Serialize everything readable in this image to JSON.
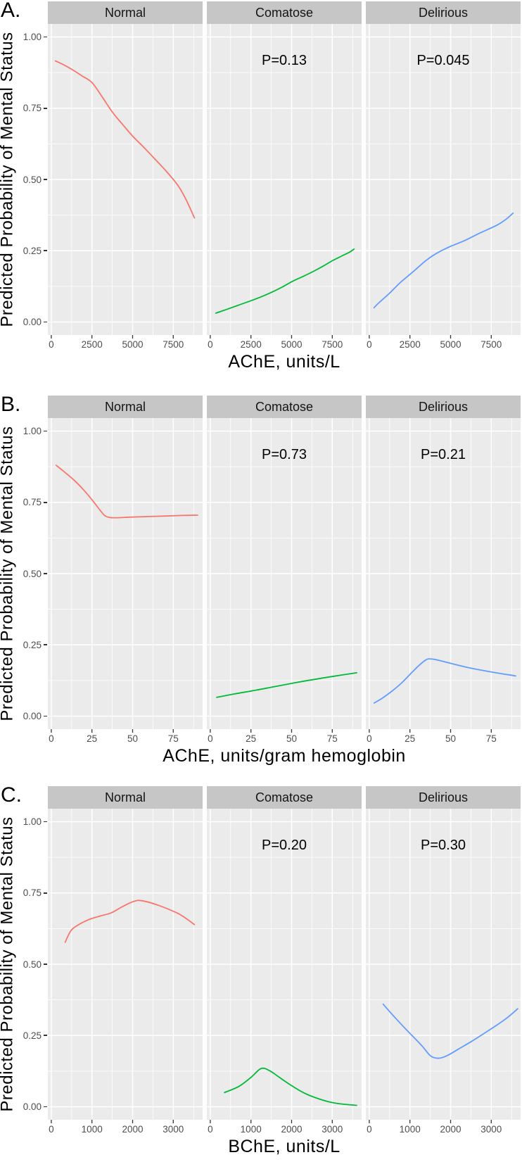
{
  "figure": {
    "ylabel": "Predicted Probability of Mental Status",
    "ytick_values": [
      1.0,
      0.75,
      0.5,
      0.25,
      0.0
    ],
    "ytick_labels": [
      "1.00",
      "0.75",
      "0.50",
      "0.25",
      "0.00"
    ],
    "yminor_values": [
      0.875,
      0.625,
      0.375,
      0.125
    ],
    "colors": {
      "normal_line": "#F8766D",
      "comatose_line": "#00BA38",
      "delirious_line": "#619CFF",
      "panel_bg": "#EBEBEB",
      "strip_bg": "#C6C6C6",
      "grid": "#FFFFFF",
      "tick_text": "#4D4D4D",
      "tick_mark": "#333333",
      "text": "#000000"
    },
    "annotation_y_value": 0.92
  },
  "chart_data": [
    {
      "panel": "A.",
      "type": "line",
      "xlabel": "AChE, units/L",
      "ylabel": "Predicted Probability of Mental Status",
      "xticks": [
        0,
        2500,
        5000,
        7500
      ],
      "xtick_labels": [
        "0",
        "2500",
        "5000",
        "7500"
      ],
      "yticks": [
        0.0,
        0.25,
        0.5,
        0.75,
        1.0
      ],
      "ylim": [
        0,
        1
      ],
      "grid": true,
      "facets": [
        {
          "label": "Normal",
          "color": "#F8766D",
          "p_value": "",
          "points": [
            [
              250,
              0.916
            ],
            [
              800,
              0.901
            ],
            [
              1300,
              0.885
            ],
            [
              1900,
              0.863
            ],
            [
              2500,
              0.84
            ],
            [
              3100,
              0.792
            ],
            [
              3800,
              0.733
            ],
            [
              4400,
              0.692
            ],
            [
              5000,
              0.652
            ],
            [
              5700,
              0.612
            ],
            [
              6400,
              0.57
            ],
            [
              7100,
              0.527
            ],
            [
              7800,
              0.478
            ],
            [
              8300,
              0.428
            ],
            [
              8800,
              0.365
            ]
          ]
        },
        {
          "label": "Comatose",
          "color": "#00BA38",
          "p_value": "P=0.13",
          "points": [
            [
              340,
              0.031
            ],
            [
              1000,
              0.044
            ],
            [
              1780,
              0.06
            ],
            [
              2570,
              0.076
            ],
            [
              3250,
              0.091
            ],
            [
              3940,
              0.109
            ],
            [
              4500,
              0.125
            ],
            [
              5100,
              0.144
            ],
            [
              5750,
              0.161
            ],
            [
              6390,
              0.179
            ],
            [
              7000,
              0.198
            ],
            [
              7540,
              0.216
            ],
            [
              8100,
              0.232
            ],
            [
              8560,
              0.245
            ],
            [
              8840,
              0.256
            ]
          ]
        },
        {
          "label": "Delirious",
          "color": "#619CFF",
          "p_value": "P=0.045",
          "points": [
            [
              290,
              0.05
            ],
            [
              600,
              0.068
            ],
            [
              1230,
              0.1
            ],
            [
              1900,
              0.138
            ],
            [
              2670,
              0.175
            ],
            [
              3470,
              0.215
            ],
            [
              4110,
              0.24
            ],
            [
              4900,
              0.263
            ],
            [
              5840,
              0.285
            ],
            [
              6800,
              0.312
            ],
            [
              7860,
              0.34
            ],
            [
              8400,
              0.36
            ],
            [
              8840,
              0.382
            ]
          ]
        }
      ]
    },
    {
      "panel": "B.",
      "type": "line",
      "xlabel": "AChE, units/gram  hemoglobin",
      "ylabel": "Predicted Probability of Mental Status",
      "xticks": [
        0,
        25,
        50,
        75
      ],
      "xtick_labels": [
        "0",
        "25",
        "50",
        "75"
      ],
      "yticks": [
        0.0,
        0.25,
        0.5,
        0.75,
        1.0
      ],
      "ylim": [
        0,
        1
      ],
      "grid": true,
      "facets": [
        {
          "label": "Normal",
          "color": "#F8766D",
          "p_value": "",
          "points": [
            [
              3,
              0.88
            ],
            [
              8,
              0.857
            ],
            [
              14,
              0.828
            ],
            [
              20,
              0.793
            ],
            [
              26,
              0.752
            ],
            [
              30,
              0.722
            ],
            [
              33,
              0.703
            ],
            [
              36,
              0.697
            ],
            [
              40,
              0.696
            ],
            [
              48,
              0.698
            ],
            [
              58,
              0.7
            ],
            [
              70,
              0.702
            ],
            [
              80,
              0.704
            ],
            [
              90,
              0.705
            ]
          ]
        },
        {
          "label": "Comatose",
          "color": "#00BA38",
          "p_value": "P=0.73",
          "points": [
            [
              4,
              0.066
            ],
            [
              15,
              0.078
            ],
            [
              28,
              0.091
            ],
            [
              40,
              0.104
            ],
            [
              52,
              0.117
            ],
            [
              64,
              0.129
            ],
            [
              76,
              0.14
            ],
            [
              90,
              0.152
            ]
          ]
        },
        {
          "label": "Delirious",
          "color": "#619CFF",
          "p_value": "P=0.21",
          "points": [
            [
              3,
              0.046
            ],
            [
              8,
              0.063
            ],
            [
              14,
              0.088
            ],
            [
              20,
              0.117
            ],
            [
              26,
              0.152
            ],
            [
              31,
              0.18
            ],
            [
              35,
              0.198
            ],
            [
              37,
              0.201
            ],
            [
              41,
              0.198
            ],
            [
              46,
              0.191
            ],
            [
              53,
              0.181
            ],
            [
              62,
              0.169
            ],
            [
              75,
              0.155
            ],
            [
              90,
              0.141
            ]
          ]
        }
      ]
    },
    {
      "panel": "C.",
      "type": "line",
      "xlabel": "BChE, units/L",
      "ylabel": "Predicted Probability of Mental Status",
      "xticks": [
        0,
        1000,
        2000,
        3000
      ],
      "xtick_labels": [
        "0",
        "1000",
        "2000",
        "3000"
      ],
      "yticks": [
        0.0,
        0.25,
        0.5,
        0.75,
        1.0
      ],
      "ylim": [
        0,
        1
      ],
      "grid": true,
      "facets": [
        {
          "label": "Normal",
          "color": "#F8766D",
          "p_value": "",
          "points": [
            [
              340,
              0.577
            ],
            [
              490,
              0.619
            ],
            [
              700,
              0.641
            ],
            [
              950,
              0.658
            ],
            [
              1200,
              0.669
            ],
            [
              1470,
              0.68
            ],
            [
              1750,
              0.702
            ],
            [
              2020,
              0.72
            ],
            [
              2220,
              0.723
            ],
            [
              2630,
              0.707
            ],
            [
              3090,
              0.68
            ],
            [
              3300,
              0.662
            ],
            [
              3520,
              0.639
            ]
          ]
        },
        {
          "label": "Comatose",
          "color": "#00BA38",
          "p_value": "P=0.20",
          "points": [
            [
              350,
              0.05
            ],
            [
              700,
              0.071
            ],
            [
              1000,
              0.103
            ],
            [
              1200,
              0.13
            ],
            [
              1320,
              0.135
            ],
            [
              1500,
              0.123
            ],
            [
              1700,
              0.103
            ],
            [
              2000,
              0.074
            ],
            [
              2300,
              0.049
            ],
            [
              2600,
              0.031
            ],
            [
              2900,
              0.018
            ],
            [
              3200,
              0.01
            ],
            [
              3600,
              0.005
            ]
          ]
        },
        {
          "label": "Delirious",
          "color": "#619CFF",
          "p_value": "P=0.30",
          "points": [
            [
              340,
              0.36
            ],
            [
              600,
              0.318
            ],
            [
              900,
              0.272
            ],
            [
              1100,
              0.243
            ],
            [
              1300,
              0.213
            ],
            [
              1480,
              0.182
            ],
            [
              1600,
              0.172
            ],
            [
              1750,
              0.171
            ],
            [
              1950,
              0.182
            ],
            [
              2200,
              0.203
            ],
            [
              2500,
              0.228
            ],
            [
              2800,
              0.255
            ],
            [
              3100,
              0.283
            ],
            [
              3400,
              0.313
            ],
            [
              3650,
              0.344
            ]
          ]
        }
      ]
    }
  ]
}
